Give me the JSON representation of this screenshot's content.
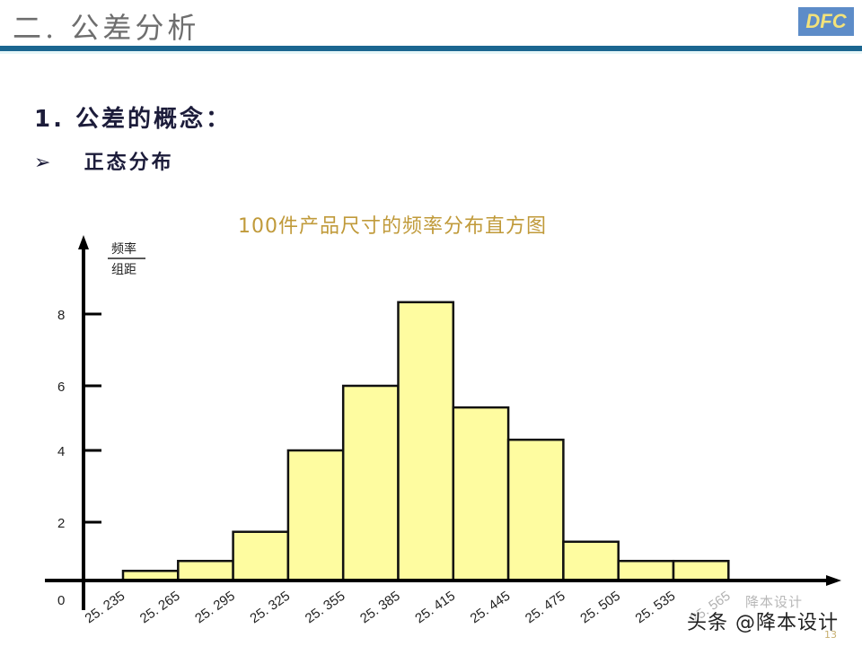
{
  "header": {
    "title": "二. 公差分析",
    "logo_text": "DFC",
    "colors": {
      "rule": "#1b6690",
      "logo_bg": "#5d8cc8",
      "logo_text": "#f3e27a"
    }
  },
  "content": {
    "heading": "1. 公差的概念：",
    "bullet_marker": "➢",
    "bullet_text": "正态分布"
  },
  "footer": {
    "page_number": "13",
    "watermark": "头条 @降本设计",
    "watermark_faint": "降本设计"
  },
  "chart_data": {
    "type": "bar",
    "title": "100件产品尺寸的频率分布直方图",
    "xlabel": "",
    "ylabel": "频率/组距",
    "ylabel_numerator": "频率",
    "ylabel_denominator": "组距",
    "y_ticks": [
      "0",
      "2",
      "4",
      "6",
      "8"
    ],
    "ylim": [
      0,
      9
    ],
    "grid": false,
    "bar_color": "#fefca0",
    "bar_edge_color": "#111111",
    "bin_edges": [
      "25.235",
      "25.265",
      "25.295",
      "25.325",
      "25.355",
      "25.385",
      "25.415",
      "25.445",
      "25.475",
      "25.505",
      "25.535",
      "25.565"
    ],
    "x_tick_labels": [
      "25. 235",
      "25. 265",
      "25. 295",
      "25. 325",
      "25. 355",
      "25. 385",
      "25. 415",
      "25. 445",
      "25. 475",
      "25. 505",
      "25. 535",
      "25. 565"
    ],
    "categories": [
      "25.235-25.265",
      "25.265-25.295",
      "25.295-25.325",
      "25.325-25.355",
      "25.355-25.385",
      "25.385-25.415",
      "25.415-25.445",
      "25.445-25.475",
      "25.475-25.505",
      "25.505-25.535",
      "25.535-25.565"
    ],
    "values": [
      0.33,
      0.67,
      1.67,
      4.0,
      6.0,
      8.33,
      5.33,
      4.33,
      1.33,
      0.67,
      0.67
    ],
    "counts_estimated": [
      1,
      2,
      5,
      12,
      18,
      25,
      16,
      13,
      4,
      2,
      2
    ]
  }
}
